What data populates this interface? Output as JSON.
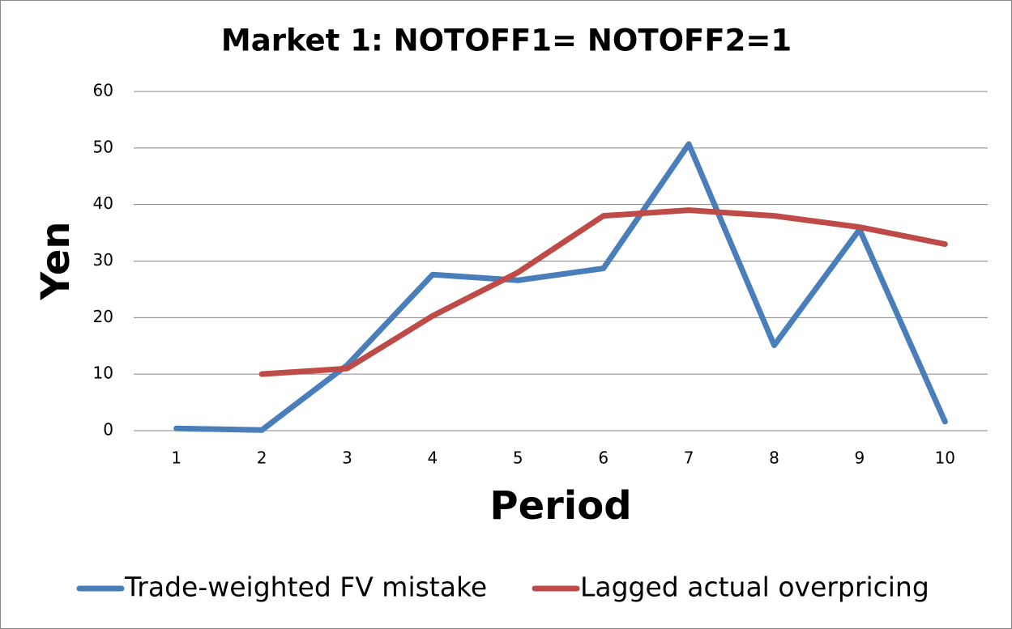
{
  "chart_data": {
    "type": "line",
    "title": "Market 1: NOTOFF1= NOTOFF2=1",
    "x_label": "Period",
    "y_label": "Yen",
    "categories": [
      "1",
      "2",
      "3",
      "4",
      "5",
      "6",
      "7",
      "8",
      "9",
      "10"
    ],
    "series": [
      {
        "name": "Trade-weighted FV mistake",
        "color": "#4a7ebb",
        "values": [
          0.4,
          0.1,
          11.6,
          27.6,
          26.6,
          28.7,
          50.7,
          15.1,
          35.6,
          1.6
        ]
      },
      {
        "name": "Lagged actual overpricing",
        "color": "#be4b48",
        "values": [
          null,
          10,
          11,
          20.3,
          28,
          38,
          39,
          38,
          36,
          33
        ]
      }
    ],
    "ylim": [
      0,
      60
    ],
    "yticks": [
      0,
      10,
      20,
      30,
      40,
      50,
      60
    ],
    "grid": true,
    "legend": "bottom"
  }
}
